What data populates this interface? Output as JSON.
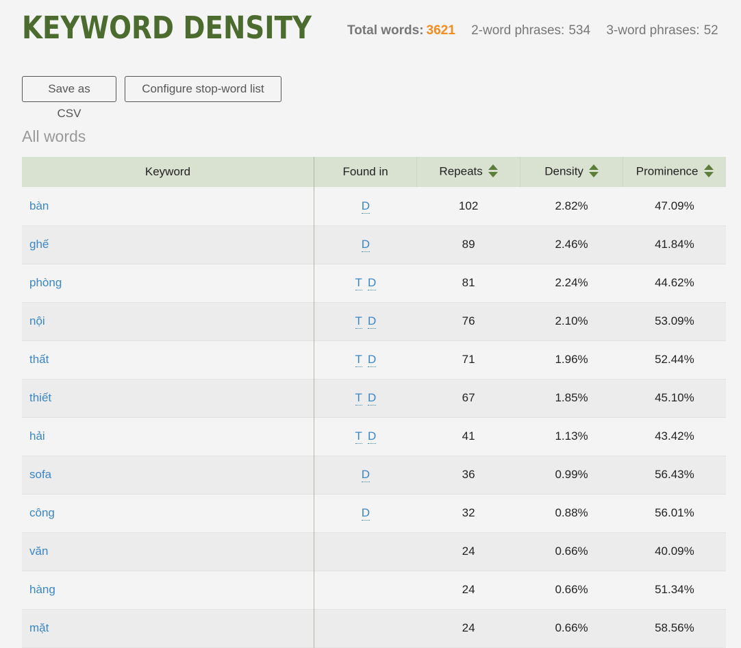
{
  "header": {
    "title": "KEYWORD DENSITY",
    "total_words_label": "Total words:",
    "total_words_value": "3621",
    "two_word_label": "2-word phrases:",
    "two_word_value": "534",
    "three_word_label": "3-word phrases:",
    "three_word_value": "52"
  },
  "toolbar": {
    "save_csv_label": "Save as CSV",
    "configure_stopwords_label": "Configure stop-word list"
  },
  "section_title": "All words",
  "table": {
    "columns": [
      "Keyword",
      "Found in",
      "Repeats",
      "Density",
      "Prominence"
    ],
    "rows": [
      {
        "keyword": "bàn",
        "found": [
          "D"
        ],
        "repeats": "102",
        "density": "2.82%",
        "prominence": "47.09%"
      },
      {
        "keyword": "ghế",
        "found": [
          "D"
        ],
        "repeats": "89",
        "density": "2.46%",
        "prominence": "41.84%"
      },
      {
        "keyword": "phòng",
        "found": [
          "T",
          "D"
        ],
        "repeats": "81",
        "density": "2.24%",
        "prominence": "44.62%"
      },
      {
        "keyword": "nội",
        "found": [
          "T",
          "D"
        ],
        "repeats": "76",
        "density": "2.10%",
        "prominence": "53.09%"
      },
      {
        "keyword": "thất",
        "found": [
          "T",
          "D"
        ],
        "repeats": "71",
        "density": "1.96%",
        "prominence": "52.44%"
      },
      {
        "keyword": "thiết",
        "found": [
          "T",
          "D"
        ],
        "repeats": "67",
        "density": "1.85%",
        "prominence": "45.10%"
      },
      {
        "keyword": "hải",
        "found": [
          "T",
          "D"
        ],
        "repeats": "41",
        "density": "1.13%",
        "prominence": "43.42%"
      },
      {
        "keyword": "sofa",
        "found": [
          "D"
        ],
        "repeats": "36",
        "density": "0.99%",
        "prominence": "56.43%"
      },
      {
        "keyword": "công",
        "found": [
          "D"
        ],
        "repeats": "32",
        "density": "0.88%",
        "prominence": "56.01%"
      },
      {
        "keyword": "văn",
        "found": [],
        "repeats": "24",
        "density": "0.66%",
        "prominence": "40.09%"
      },
      {
        "keyword": "hàng",
        "found": [],
        "repeats": "24",
        "density": "0.66%",
        "prominence": "51.34%"
      },
      {
        "keyword": "mặt",
        "found": [],
        "repeats": "24",
        "density": "0.66%",
        "prominence": "58.56%"
      }
    ]
  },
  "colors": {
    "title": "#4c6b2e",
    "accent": "#f28c1e",
    "link": "#3a86c6",
    "header_bg": "#d9e2d1",
    "sort_icon": "#5d7d3b"
  },
  "icons": {
    "sort": "sort-up-down-icon"
  }
}
